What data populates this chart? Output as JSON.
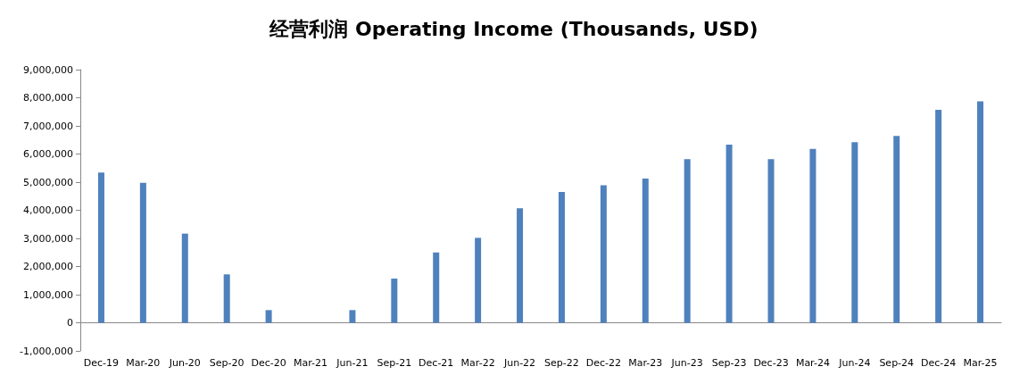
{
  "chart_data": {
    "type": "bar",
    "title": "经营利润 Operating Income (Thousands, USD)",
    "categories": [
      "Dec-19",
      "Mar-20",
      "Jun-20",
      "Sep-20",
      "Dec-20",
      "Mar-21",
      "Jun-21",
      "Sep-21",
      "Dec-21",
      "Mar-22",
      "Jun-22",
      "Sep-22",
      "Dec-22",
      "Mar-23",
      "Jun-23",
      "Sep-23",
      "Dec-23",
      "Mar-24",
      "Jun-24",
      "Sep-24",
      "Dec-24",
      "Mar-25"
    ],
    "values": [
      5340000,
      4980000,
      3170000,
      1720000,
      450000,
      0,
      450000,
      1570000,
      2500000,
      3020000,
      4070000,
      4650000,
      4890000,
      5130000,
      5820000,
      6330000,
      5820000,
      6180000,
      6420000,
      6640000,
      7570000,
      7870000
    ],
    "color": "#4f81bd",
    "ylim": [
      -1000000,
      9000000
    ],
    "yticks": [
      {
        "value": -1000000,
        "label": "-1,000,000"
      },
      {
        "value": 0,
        "label": "0"
      },
      {
        "value": 1000000,
        "label": "1,000,000"
      },
      {
        "value": 2000000,
        "label": "2,000,000"
      },
      {
        "value": 3000000,
        "label": "3,000,000"
      },
      {
        "value": 4000000,
        "label": "4,000,000"
      },
      {
        "value": 5000000,
        "label": "5,000,000"
      },
      {
        "value": 6000000,
        "label": "6,000,000"
      },
      {
        "value": 7000000,
        "label": "7,000,000"
      },
      {
        "value": 8000000,
        "label": "8,000,000"
      },
      {
        "value": 9000000,
        "label": "9,000,000"
      }
    ]
  }
}
